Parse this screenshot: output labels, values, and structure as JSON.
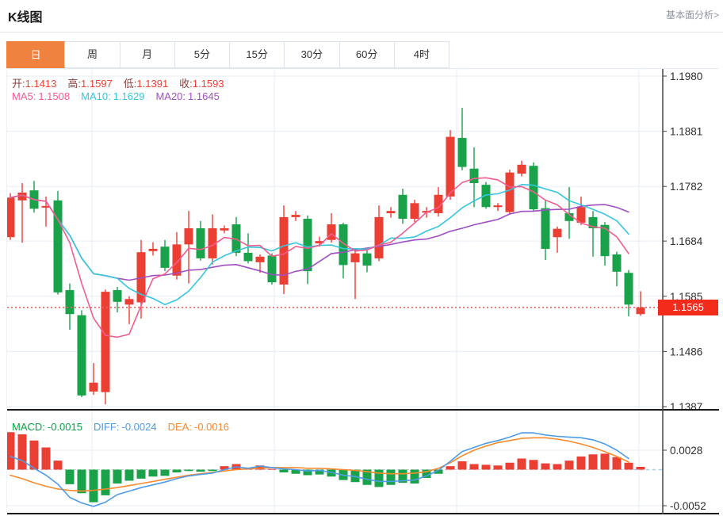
{
  "header": {
    "title": "K线图",
    "link": "基本面分析>"
  },
  "tabs": {
    "active_index": 0,
    "items": [
      "日",
      "周",
      "月",
      "5分",
      "15分",
      "30分",
      "60分",
      "4时"
    ]
  },
  "legend": {
    "ohlc": [
      {
        "label": "开:",
        "value": "1.1413"
      },
      {
        "label": "高:",
        "value": "1.1597"
      },
      {
        "label": "低:",
        "value": "1.1391"
      },
      {
        "label": "收:",
        "value": "1.1593"
      }
    ],
    "ma": [
      {
        "label": "MA5:",
        "value": "1.1508",
        "color": "#f25c8e"
      },
      {
        "label": "MA10:",
        "value": "1.1629",
        "color": "#35c7dd"
      },
      {
        "label": "MA20:",
        "value": "1.1645",
        "color": "#a04fc2"
      }
    ],
    "macd": [
      {
        "label": "MACD:",
        "value": "-0.0015",
        "color": "#0aa145"
      },
      {
        "label": "DIFF:",
        "value": "-0.0024",
        "color": "#4e9ce8"
      },
      {
        "label": "DEA:",
        "value": "-0.0016",
        "color": "#f78b2d"
      }
    ]
  },
  "chart_data": {
    "type": "candlestick+macd",
    "note": "Daily EUR-style FX candles; red = up (CN convention), green = down",
    "price_axis": {
      "labels": [
        "1.1980",
        "1.1881",
        "1.1782",
        "1.1684",
        "1.1585",
        "1.1486",
        "1.1387"
      ],
      "max": 1.198,
      "min": 1.1387,
      "step": 0.0099
    },
    "macd_axis": {
      "labels": [
        "0.0028",
        "-0.0052"
      ],
      "values": [
        0.0028,
        -0.0052
      ]
    },
    "last_price": "1.1565",
    "candles_ohlc": [
      [
        1.1691,
        1.177,
        1.1686,
        1.1762
      ],
      [
        1.1757,
        1.1788,
        1.1681,
        1.1771
      ],
      [
        1.1775,
        1.1792,
        1.1735,
        1.1742
      ],
      [
        1.1744,
        1.1764,
        1.171,
        1.1747
      ],
      [
        1.1757,
        1.1774,
        1.1588,
        1.1592
      ],
      [
        1.1596,
        1.1608,
        1.1525,
        1.1553
      ],
      [
        1.1551,
        1.156,
        1.1404,
        1.1407
      ],
      [
        1.1414,
        1.1465,
        1.1408,
        1.143
      ],
      [
        1.1413,
        1.1597,
        1.1391,
        1.1593
      ],
      [
        1.1596,
        1.1602,
        1.1556,
        1.1575
      ],
      [
        1.157,
        1.1585,
        1.1535,
        1.158
      ],
      [
        1.1574,
        1.1686,
        1.1545,
        1.1664
      ],
      [
        1.1666,
        1.1682,
        1.1658,
        1.167
      ],
      [
        1.1674,
        1.1686,
        1.163,
        1.1636
      ],
      [
        1.1622,
        1.17,
        1.1615,
        1.1678
      ],
      [
        1.1678,
        1.1738,
        1.1608,
        1.1707
      ],
      [
        1.1707,
        1.172,
        1.1649,
        1.1653
      ],
      [
        1.1653,
        1.1732,
        1.1642,
        1.1707
      ],
      [
        1.1703,
        1.1712,
        1.1698,
        1.1707
      ],
      [
        1.1714,
        1.1727,
        1.1657,
        1.1663
      ],
      [
        1.1663,
        1.1698,
        1.1644,
        1.1648
      ],
      [
        1.1646,
        1.166,
        1.1627,
        1.1656
      ],
      [
        1.1658,
        1.1662,
        1.1606,
        1.161
      ],
      [
        1.1606,
        1.1748,
        1.1589,
        1.1727
      ],
      [
        1.1727,
        1.1738,
        1.172,
        1.1731
      ],
      [
        1.1724,
        1.173,
        1.1607,
        1.163
      ],
      [
        1.168,
        1.1692,
        1.1674,
        1.1684
      ],
      [
        1.1686,
        1.1734,
        1.1681,
        1.1714
      ],
      [
        1.1714,
        1.1717,
        1.1617,
        1.1641
      ],
      [
        1.1646,
        1.1668,
        1.158,
        1.1662
      ],
      [
        1.1662,
        1.1668,
        1.1628,
        1.164
      ],
      [
        1.1653,
        1.1748,
        1.1648,
        1.1727
      ],
      [
        1.1734,
        1.1745,
        1.1726,
        1.1738
      ],
      [
        1.1767,
        1.1778,
        1.1715,
        1.1724
      ],
      [
        1.1724,
        1.1758,
        1.1718,
        1.1752
      ],
      [
        1.1735,
        1.1745,
        1.1726,
        1.1738
      ],
      [
        1.1734,
        1.1781,
        1.1728,
        1.1767
      ],
      [
        1.1764,
        1.1883,
        1.1758,
        1.1871
      ],
      [
        1.1869,
        1.1923,
        1.1811,
        1.1817
      ],
      [
        1.1814,
        1.1852,
        1.1745,
        1.1788
      ],
      [
        1.1785,
        1.179,
        1.1742,
        1.1745
      ],
      [
        1.1745,
        1.1752,
        1.1738,
        1.1748
      ],
      [
        1.1736,
        1.1812,
        1.1732,
        1.1807
      ],
      [
        1.1805,
        1.1828,
        1.18,
        1.1821
      ],
      [
        1.1819,
        1.1825,
        1.1738,
        1.1741
      ],
      [
        1.1743,
        1.1757,
        1.165,
        1.167
      ],
      [
        1.1691,
        1.171,
        1.1663,
        1.1706
      ],
      [
        1.1734,
        1.1781,
        1.1688,
        1.172
      ],
      [
        1.1717,
        1.1764,
        1.1713,
        1.1745
      ],
      [
        1.1727,
        1.1738,
        1.1656,
        1.1707
      ],
      [
        1.1713,
        1.1718,
        1.164,
        1.1657
      ],
      [
        1.166,
        1.1665,
        1.1603,
        1.1629
      ],
      [
        1.1627,
        1.1632,
        1.1549,
        1.157
      ],
      [
        1.1553,
        1.1594,
        1.155,
        1.1565
      ]
    ],
    "overlays": {
      "ma5": "computed",
      "ma10": "computed",
      "ma20": "computed"
    },
    "macd_hist": [
      0.0054,
      0.0051,
      0.0042,
      0.0032,
      0.0013,
      -0.0021,
      -0.0034,
      -0.0047,
      -0.0037,
      -0.002,
      -0.0016,
      -0.0013,
      -0.001,
      -0.0009,
      -0.0004,
      -0.0002,
      -0.0003,
      -0.0002,
      0.0005,
      0.0008,
      0.0002,
      0.0006,
      0.0001,
      -0.0004,
      -0.0006,
      -0.0008,
      -0.0007,
      -0.001,
      -0.0015,
      -0.0018,
      -0.0022,
      -0.0025,
      -0.0022,
      -0.0019,
      -0.002,
      -0.0012,
      -0.0006,
      0.0005,
      0.0012,
      0.0008,
      0.0007,
      0.0006,
      0.001,
      0.0016,
      0.0014,
      0.0009,
      0.0008,
      0.0013,
      0.0019,
      0.0022,
      0.0023,
      0.0018,
      0.001,
      0.0004
    ],
    "diff_line": [
      0.0019,
      0.0013,
      0.0002,
      -0.0008,
      -0.0021,
      -0.004,
      -0.0048,
      -0.0053,
      -0.0047,
      -0.0036,
      -0.0031,
      -0.0026,
      -0.0022,
      -0.0018,
      -0.0013,
      -0.0009,
      -0.0007,
      -0.0005,
      0.0,
      0.0004,
      0.0002,
      0.0005,
      0.0003,
      0.0001,
      0.0,
      -0.0002,
      -0.0001,
      -0.0004,
      -0.0008,
      -0.001,
      -0.0014,
      -0.0017,
      -0.0017,
      -0.0016,
      -0.0015,
      -0.0009,
      -0.0001,
      0.0012,
      0.0026,
      0.0032,
      0.0038,
      0.0042,
      0.0047,
      0.0053,
      0.0053,
      0.005,
      0.0048,
      0.0047,
      0.0046,
      0.0043,
      0.0037,
      0.0028,
      0.0016,
      0.0005
    ],
    "dea_line": [
      -0.0008,
      -0.0013,
      -0.0019,
      -0.0024,
      -0.0028,
      -0.003,
      -0.0031,
      -0.003,
      -0.0028,
      -0.0026,
      -0.0023,
      -0.002,
      -0.0017,
      -0.0014,
      -0.0011,
      -0.0008,
      -0.0006,
      -0.0004,
      -0.0002,
      0.0,
      0.0001,
      0.0002,
      0.0003,
      0.0003,
      0.0003,
      0.0002,
      0.0002,
      0.0001,
      0.0,
      -0.0001,
      -0.0003,
      -0.0005,
      -0.0006,
      -0.0006,
      -0.0005,
      -0.0003,
      0.0002,
      0.001,
      0.002,
      0.0028,
      0.0034,
      0.0039,
      0.0042,
      0.0045,
      0.0046,
      0.0046,
      0.0044,
      0.0041,
      0.0037,
      0.0032,
      0.0026,
      0.0019,
      0.0011,
      0.0003
    ],
    "colors": {
      "up": "#ec3f33",
      "down": "#1aa24a",
      "ma5": "#f25c8e",
      "ma10": "#35c7dd",
      "ma20": "#a04fc2",
      "diff": "#4e9ce8",
      "dea": "#f78b2d",
      "grid": "#e6edf6",
      "axis_line": "#444444",
      "axis_text": "#2e2e2e",
      "divider": "#1a1a1a",
      "price_dotted": "#f56060",
      "price_flag": "#f32b1b",
      "zero_dash": "#c9d2dc",
      "zero_dash_tail": "#a5d2ef"
    },
    "layout": {
      "grid": true,
      "legend_position": "top-left inside plot"
    }
  }
}
